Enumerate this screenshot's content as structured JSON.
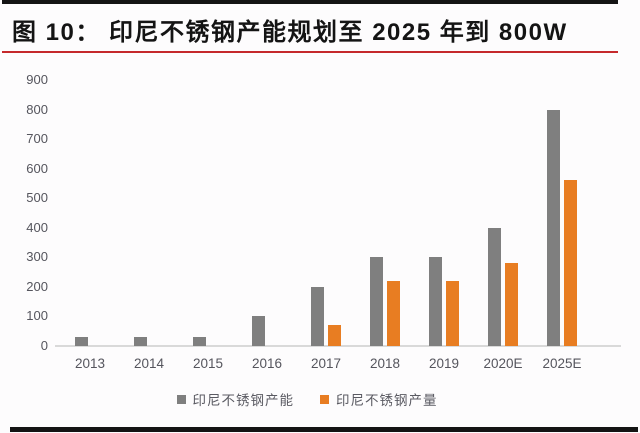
{
  "header": {
    "title": "图 10：  印尼不锈钢产能规划至 2025 年到 800W"
  },
  "colors": {
    "accent_red": "#c5292c",
    "rule_black": "#141414",
    "axis_text": "#55555d",
    "background": "#fdfcfd"
  },
  "chart_data": {
    "type": "bar",
    "title": "印尼不锈钢产能规划至 2025 年到 800W",
    "categories": [
      "2013",
      "2014",
      "2015",
      "2016",
      "2017",
      "2018",
      "2019",
      "2020E",
      "2025E"
    ],
    "series": [
      {
        "name": "印尼不锈钢产能",
        "color": "#7f7f7f",
        "values": [
          30,
          30,
          30,
          100,
          200,
          300,
          300,
          400,
          800
        ]
      },
      {
        "name": "印尼不锈钢产量",
        "color": "#e87d22",
        "values": [
          0,
          0,
          0,
          0,
          70,
          220,
          220,
          280,
          560
        ]
      }
    ],
    "xlabel": "",
    "ylabel": "",
    "ylim": [
      0,
      900
    ],
    "ytick_step": 100,
    "grid": false,
    "legend_position": "bottom"
  }
}
